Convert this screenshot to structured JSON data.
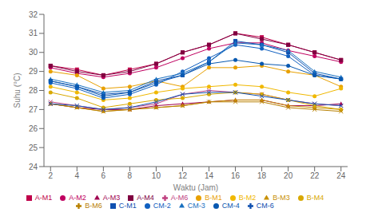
{
  "chart_data": {
    "type": "line",
    "xlabel": "Waktu (Jam)",
    "ylabel": "Suhu (°C)",
    "x": [
      2,
      4,
      6,
      8,
      10,
      12,
      14,
      16,
      18,
      20,
      22,
      24
    ],
    "xlim": [
      1.5,
      24.5
    ],
    "xticks": [
      2,
      4,
      6,
      8,
      10,
      12,
      14,
      16,
      18,
      20,
      22,
      24
    ],
    "ylim": [
      24,
      32
    ],
    "yticks": [
      24,
      25,
      26,
      27,
      28,
      29,
      30,
      31,
      32
    ],
    "grid": false,
    "legend": "bottom",
    "series": [
      {
        "name": "A-M1",
        "color": "#c0004a",
        "marker": "square",
        "values": [
          29.3,
          29.1,
          28.8,
          29.1,
          29.4,
          30.0,
          30.4,
          31.0,
          30.8,
          30.4,
          30.0,
          29.6
        ]
      },
      {
        "name": "A-M2",
        "color": "#c00060",
        "marker": "circle",
        "values": [
          29.2,
          28.9,
          28.7,
          28.9,
          29.2,
          29.7,
          30.2,
          30.5,
          30.5,
          30.1,
          29.8,
          29.5
        ]
      },
      {
        "name": "A-M3",
        "color": "#a00050",
        "marker": "triangle",
        "values": [
          27.3,
          27.1,
          27.0,
          27.0,
          27.2,
          27.3,
          27.4,
          27.5,
          27.5,
          27.2,
          27.2,
          27.3
        ]
      },
      {
        "name": "A-M4",
        "color": "#800040",
        "marker": "square",
        "values": [
          29.3,
          29.0,
          28.8,
          29.0,
          29.4,
          30.0,
          30.4,
          31.0,
          30.7,
          30.4,
          30.0,
          29.6
        ]
      },
      {
        "name": "A-M6",
        "color": "#c04080",
        "marker": "x",
        "values": [
          27.4,
          27.2,
          27.0,
          27.1,
          27.3,
          27.8,
          28.0,
          27.9,
          27.8,
          27.5,
          27.3,
          27.2
        ]
      },
      {
        "name": "B-M1",
        "color": "#e8a000",
        "marker": "circle",
        "values": [
          29.0,
          28.8,
          28.1,
          28.2,
          28.5,
          28.2,
          29.2,
          29.2,
          29.3,
          29.0,
          28.8,
          28.2
        ]
      },
      {
        "name": "B-M2",
        "color": "#f0b800",
        "marker": "circle",
        "values": [
          28.2,
          27.9,
          27.5,
          27.6,
          27.9,
          28.1,
          28.2,
          28.3,
          28.2,
          27.9,
          27.7,
          28.1
        ]
      },
      {
        "name": "B-M3",
        "color": "#c89000",
        "marker": "triangle",
        "values": [
          27.3,
          27.1,
          26.9,
          27.0,
          27.1,
          27.2,
          27.4,
          27.5,
          27.5,
          27.2,
          27.1,
          27.0
        ]
      },
      {
        "name": "B-M4",
        "color": "#d8a800",
        "marker": "circle",
        "values": [
          27.9,
          27.6,
          27.1,
          27.3,
          27.5,
          27.6,
          27.8,
          27.9,
          27.8,
          27.5,
          27.2,
          27.0
        ]
      },
      {
        "name": "B-M6",
        "color": "#b88000",
        "marker": "x",
        "values": [
          27.3,
          27.1,
          26.9,
          27.0,
          27.1,
          27.2,
          27.4,
          27.4,
          27.4,
          27.1,
          27.0,
          26.9
        ]
      },
      {
        "name": "C-M1",
        "color": "#1050b0",
        "marker": "square",
        "values": [
          28.5,
          28.2,
          27.8,
          27.9,
          28.5,
          28.8,
          29.5,
          30.6,
          30.4,
          30.0,
          28.9,
          28.6
        ]
      },
      {
        "name": "CM-2",
        "color": "#1060c0",
        "marker": "circle",
        "values": [
          28.4,
          28.1,
          27.6,
          27.8,
          28.3,
          29.0,
          29.7,
          30.4,
          30.2,
          29.8,
          28.8,
          28.6
        ]
      },
      {
        "name": "CM-3",
        "color": "#1870c0",
        "marker": "triangle",
        "values": [
          28.6,
          28.3,
          27.9,
          28.0,
          28.6,
          28.9,
          29.5,
          30.5,
          30.4,
          30.1,
          29.0,
          28.7
        ]
      },
      {
        "name": "CM-4",
        "color": "#0858b0",
        "marker": "circle",
        "values": [
          28.5,
          28.2,
          27.7,
          27.9,
          28.4,
          28.8,
          29.4,
          29.6,
          29.4,
          29.3,
          28.8,
          28.6
        ]
      },
      {
        "name": "CM-6",
        "color": "#1050b0",
        "marker": "x",
        "values": [
          27.3,
          27.2,
          27.0,
          27.1,
          27.4,
          27.8,
          27.9,
          27.9,
          27.7,
          27.5,
          27.3,
          27.2
        ]
      }
    ]
  }
}
